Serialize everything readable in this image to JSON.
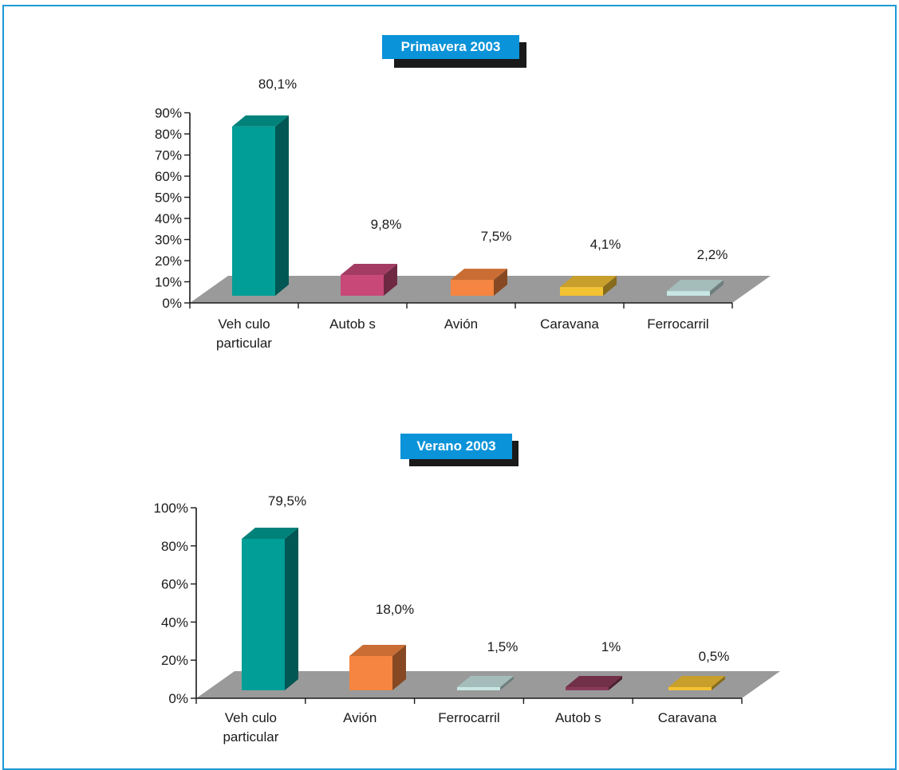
{
  "colors": {
    "border": "#1b9ad6",
    "title_bg": "#0a93d8",
    "floor": "#9a9a9a",
    "teal": "#009e96",
    "pink": "#c84878",
    "orange": "#f58540",
    "yellow": "#f3c233",
    "light_cyan": "#c8e6e3",
    "maroon": "#8a3a58"
  },
  "chart_data": [
    {
      "type": "bar",
      "title": "Primavera 2003",
      "categories": [
        "Veh culo particular",
        "Autob s",
        "Avión",
        "Caravana",
        "Ferrocarril"
      ],
      "category_lines": [
        [
          "Veh culo",
          "particular"
        ],
        [
          "Autob  s"
        ],
        [
          "Avión"
        ],
        [
          "Caravana"
        ],
        [
          "Ferrocarril"
        ]
      ],
      "values": [
        80.1,
        9.8,
        7.5,
        4.1,
        2.2
      ],
      "value_labels": [
        "80,1%",
        "9,8%",
        "7,5%",
        "4,1%",
        "2,2%"
      ],
      "bar_colors": [
        "teal",
        "pink",
        "orange",
        "yellow",
        "light_cyan"
      ],
      "yticks": [
        "0%",
        "10%",
        "20%",
        "30%",
        "40%",
        "50%",
        "60%",
        "70%",
        "80%",
        "90%"
      ],
      "ylim": [
        0,
        90
      ],
      "grid": false,
      "legend": "none"
    },
    {
      "type": "bar",
      "title": "Verano 2003",
      "categories": [
        "Veh culo particular",
        "Avión",
        "Ferrocarril",
        "Autob s",
        "Caravana"
      ],
      "category_lines": [
        [
          "Veh culo",
          "particular"
        ],
        [
          "Avión"
        ],
        [
          "Ferrocarril"
        ],
        [
          "Autob  s"
        ],
        [
          "Caravana"
        ]
      ],
      "values": [
        79.5,
        18.0,
        1.5,
        1,
        0.5
      ],
      "value_labels": [
        "79,5%",
        "18,0%",
        "1,5%",
        "1%",
        "0,5%"
      ],
      "bar_colors": [
        "teal",
        "orange",
        "light_cyan",
        "maroon",
        "yellow"
      ],
      "yticks": [
        "0%",
        "20%",
        "40%",
        "60%",
        "80%",
        "100%"
      ],
      "ylim": [
        0,
        100
      ],
      "grid": false,
      "legend": "none"
    }
  ]
}
